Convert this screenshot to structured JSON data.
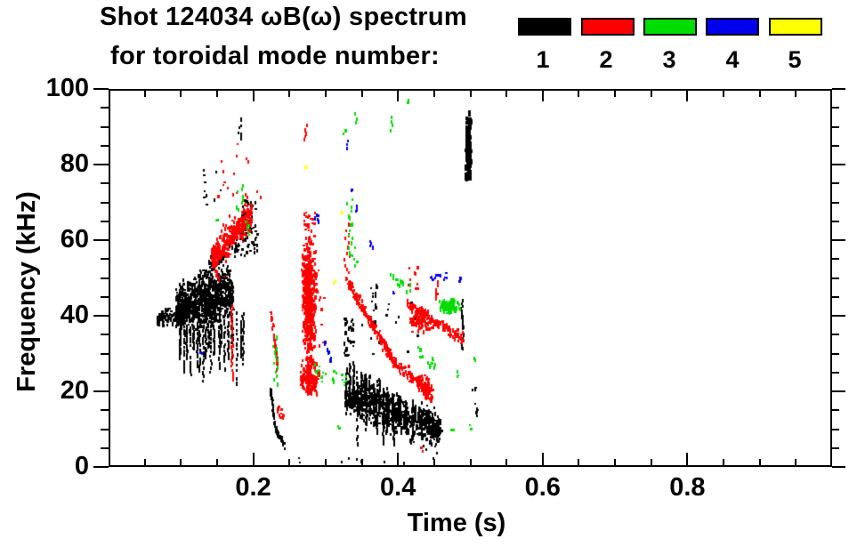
{
  "title_line1": "Shot 124034 ωB(ω) spectrum",
  "title_line2": "for toroidal mode number:",
  "chart_data": {
    "type": "scatter",
    "title": "Shot 124034 ωB(ω) spectrum for toroidal mode number",
    "xlabel": "Time (s)",
    "ylabel": "Frequency (kHz)",
    "xlim": [
      0,
      1.0
    ],
    "ylim": [
      0,
      100
    ],
    "x_major_ticks": [
      0.2,
      0.4,
      0.6,
      0.8
    ],
    "x_tick_labels": [
      "0.2",
      "0.4",
      "0.6",
      "0.8"
    ],
    "x_minor_step": 0.05,
    "y_major_ticks": [
      0,
      20,
      40,
      60,
      80,
      100
    ],
    "y_tick_labels": [
      "0",
      "20",
      "40",
      "60",
      "80",
      "100"
    ],
    "y_minor_step": 5,
    "grid": false,
    "legend_position": "top-right",
    "legend": [
      {
        "label": "1",
        "mode": 1,
        "color": "#000000"
      },
      {
        "label": "2",
        "mode": 2,
        "color": "#ff0000"
      },
      {
        "label": "3",
        "mode": 3,
        "color": "#00dd00"
      },
      {
        "label": "4",
        "mode": 4,
        "color": "#0000ee"
      },
      {
        "label": "5",
        "mode": 5,
        "color": "#ffff00"
      }
    ],
    "series": [
      {
        "name": "n=1",
        "mode": 1,
        "color": "#000000",
        "clusters": [
          {
            "k": "diag",
            "t": [
              0.067,
              0.1
            ],
            "f": [
              38.5,
              41.0
            ],
            "w": 2.2,
            "n": 90
          },
          {
            "k": "diag",
            "t": [
              0.093,
              0.172
            ],
            "f": [
              41.5,
              46.5
            ],
            "w": 6.0,
            "n": 950
          },
          {
            "k": "vspikes",
            "t": [
              0.095,
              0.188
            ],
            "top": [
              36,
              40
            ],
            "bot": [
              25,
              16
            ],
            "tracks": 22,
            "n": 330
          },
          {
            "k": "diag",
            "t": [
              0.125,
              0.2
            ],
            "f": [
              50,
              64
            ],
            "w": 3.0,
            "n": 90
          },
          {
            "k": "specks",
            "t": [
              0.18,
              0.206
            ],
            "f": [
              56,
              71
            ],
            "n": 60
          },
          {
            "k": "specks",
            "t": [
              0.13,
              0.156
            ],
            "f": [
              69,
              79
            ],
            "n": 10
          },
          {
            "k": "vstreak",
            "t": [
              0.179,
              0.186
            ],
            "f": [
              87,
              92.5
            ],
            "n": 7
          },
          {
            "k": "diag",
            "t": [
              0.2235,
              0.231
            ],
            "f": [
              21,
              10
            ],
            "w": 1.0,
            "n": 36
          },
          {
            "k": "diag",
            "t": [
              0.231,
              0.2435
            ],
            "f": [
              10,
              5.5
            ],
            "w": 0.9,
            "n": 26
          },
          {
            "k": "vspikes",
            "t": [
              0.327,
              0.45
            ],
            "top": [
              28,
              13
            ],
            "bot": [
              3,
              7
            ],
            "tracks": 26,
            "n": 560
          },
          {
            "k": "diag",
            "t": [
              0.327,
              0.458
            ],
            "f": [
              19,
              9.5
            ],
            "w": 4.5,
            "n": 620
          },
          {
            "k": "specks",
            "t": [
              0.45,
              0.463
            ],
            "f": [
              8.8,
              10.4
            ],
            "n": 14
          },
          {
            "k": "specks",
            "t": [
              0.325,
              0.34
            ],
            "f": [
              29,
              40
            ],
            "n": 40
          },
          {
            "k": "specks",
            "t": [
              0.36,
              0.372
            ],
            "f": [
              38,
              48
            ],
            "n": 14
          },
          {
            "k": "specks",
            "t": [
              0.35,
              0.43
            ],
            "f": [
              28,
              46
            ],
            "n": 16
          },
          {
            "k": "bar",
            "t": [
              0.4935,
              0.5005
            ],
            "f": [
              76,
              92.5
            ],
            "n": 140
          },
          {
            "k": "specks",
            "t": [
              0.496,
              0.499
            ],
            "f": [
              93,
              94.5
            ],
            "n": 2
          },
          {
            "k": "vstreak",
            "t": [
              0.4875,
              0.4905
            ],
            "f": [
              31,
              44
            ],
            "n": 20
          },
          {
            "k": "specks",
            "t": [
              0.503,
              0.51
            ],
            "f": [
              13,
              21.5
            ],
            "n": 9
          },
          {
            "k": "specks",
            "t": [
              0.23,
              0.49
            ],
            "f": [
              0.2,
              2.5
            ],
            "n": 11
          }
        ]
      },
      {
        "name": "n=2",
        "mode": 2,
        "color": "#ff0000",
        "clusters": [
          {
            "k": "diag",
            "t": [
              0.143,
              0.198
            ],
            "f": [
              55.5,
              67
            ],
            "w": 3.5,
            "n": 290
          },
          {
            "k": "diag",
            "t": [
              0.143,
              0.198
            ],
            "f": [
              55.5,
              67
            ],
            "w": 7.5,
            "n": 55
          },
          {
            "k": "specks",
            "t": [
              0.15,
              0.21
            ],
            "f": [
              70,
              86
            ],
            "n": 14
          },
          {
            "k": "vstreak",
            "t": [
              0.1695,
              0.1725
            ],
            "f": [
              23,
              43
            ],
            "n": 24
          },
          {
            "k": "diag",
            "t": [
              0.2235,
              0.2335
            ],
            "f": [
              42.5,
              26.5
            ],
            "w": 1.4,
            "n": 40
          },
          {
            "k": "specks",
            "t": [
              0.231,
              0.242
            ],
            "f": [
              12,
              16.5
            ],
            "n": 12
          },
          {
            "k": "blob",
            "t": [
              0.267,
              0.288
            ],
            "f": [
              25,
              62
            ],
            "n": 540
          },
          {
            "k": "blob",
            "t": [
              0.264,
              0.292
            ],
            "f": [
              18.5,
              28
            ],
            "n": 160
          },
          {
            "k": "specks",
            "t": [
              0.27,
              0.285
            ],
            "f": [
              62,
              67.5
            ],
            "n": 26
          },
          {
            "k": "vstreak",
            "t": [
              0.27,
              0.274
            ],
            "f": [
              86.5,
              90
            ],
            "n": 5
          },
          {
            "k": "specks",
            "t": [
              0.288,
              0.298
            ],
            "f": [
              30,
              55
            ],
            "n": 10
          },
          {
            "k": "vstreak",
            "t": [
              0.326,
              0.333
            ],
            "f": [
              50,
              64
            ],
            "n": 13
          },
          {
            "k": "diag",
            "t": [
              0.3285,
              0.396
            ],
            "f": [
              49.5,
              27.5
            ],
            "w": 1.7,
            "n": 175
          },
          {
            "k": "diag",
            "t": [
              0.396,
              0.448
            ],
            "f": [
              27.5,
              19
            ],
            "w": 1.7,
            "n": 95
          },
          {
            "k": "blob",
            "t": [
              0.428,
              0.448
            ],
            "f": [
              18,
              24.5
            ],
            "n": 65
          },
          {
            "k": "diag",
            "t": [
              0.412,
              0.49
            ],
            "f": [
              43,
              33.8
            ],
            "w": 1.4,
            "n": 115
          },
          {
            "k": "blob",
            "t": [
              0.414,
              0.446
            ],
            "f": [
              35,
              43
            ],
            "n": 95
          },
          {
            "k": "vstreak",
            "t": [
              0.452,
              0.456
            ],
            "f": [
              44.5,
              48.5
            ],
            "n": 7
          },
          {
            "k": "specks",
            "t": [
              0.412,
              0.428
            ],
            "f": [
              47,
              53
            ],
            "n": 10
          },
          {
            "k": "specks",
            "t": [
              0.431,
              0.435
            ],
            "f": [
              4.2,
              5.2
            ],
            "n": 2
          }
        ]
      },
      {
        "name": "n=3",
        "mode": 3,
        "color": "#00dd00",
        "clusters": [
          {
            "k": "vstreak",
            "t": [
              0.176,
              0.186
            ],
            "f": [
              68,
              74.5
            ],
            "n": 8
          },
          {
            "k": "specks",
            "t": [
              0.188,
              0.194
            ],
            "f": [
              61.5,
              66.5
            ],
            "n": 6
          },
          {
            "k": "specks",
            "t": [
              0.148,
              0.151
            ],
            "f": [
              64.8,
              66
            ],
            "n": 2
          },
          {
            "k": "vstreak",
            "t": [
              0.2275,
              0.2345
            ],
            "f": [
              22,
              34.5
            ],
            "n": 13
          },
          {
            "k": "specks",
            "t": [
              0.285,
              0.302
            ],
            "f": [
              21.5,
              27.5
            ],
            "n": 10
          },
          {
            "k": "specks",
            "t": [
              0.308,
              0.331
            ],
            "f": [
              21.5,
              25.5
            ],
            "n": 12
          },
          {
            "k": "specks",
            "t": [
              0.316,
              0.319
            ],
            "f": [
              9.5,
              11
            ],
            "n": 2
          },
          {
            "k": "vstreak",
            "t": [
              0.33,
              0.338
            ],
            "f": [
              56,
              71
            ],
            "n": 15
          },
          {
            "k": "specks",
            "t": [
              0.336,
              0.346
            ],
            "f": [
              53,
              59
            ],
            "n": 6
          },
          {
            "k": "specks",
            "t": [
              0.324,
              0.327
            ],
            "f": [
              88,
              89.4
            ],
            "n": 2
          },
          {
            "k": "vstreak",
            "t": [
              0.34,
              0.343
            ],
            "f": [
              91,
              93
            ],
            "n": 3
          },
          {
            "k": "vstreak",
            "t": [
              0.389,
              0.393
            ],
            "f": [
              89.4,
              92.5
            ],
            "n": 4
          },
          {
            "k": "specks",
            "t": [
              0.413,
              0.416
            ],
            "f": [
              96.4,
              98.2
            ],
            "n": 2
          },
          {
            "k": "diag",
            "t": [
              0.388,
              0.418
            ],
            "f": [
              51,
              46.5
            ],
            "w": 1.1,
            "n": 16
          },
          {
            "k": "diag",
            "t": [
              0.428,
              0.455
            ],
            "f": [
              31,
              25
            ],
            "w": 1.0,
            "n": 12
          },
          {
            "k": "specks",
            "t": [
              0.444,
              0.449
            ],
            "f": [
              27,
              29
            ],
            "n": 3
          },
          {
            "k": "specks",
            "t": [
              0.474,
              0.477
            ],
            "f": [
              9.6,
              11
            ],
            "n": 2
          },
          {
            "k": "specks",
            "t": [
              0.481,
              0.484
            ],
            "f": [
              23.8,
              25.2
            ],
            "n": 3
          },
          {
            "k": "specks",
            "t": [
              0.499,
              0.502
            ],
            "f": [
              9,
              11.3
            ],
            "n": 3
          },
          {
            "k": "specks",
            "t": [
              0.505,
              0.508
            ],
            "f": [
              27,
              29.5
            ],
            "n": 3
          },
          {
            "k": "blob",
            "t": [
              0.4565,
              0.4865
            ],
            "f": [
              40.5,
              44.5
            ],
            "n": 85
          }
        ]
      },
      {
        "name": "n=4",
        "mode": 4,
        "color": "#0000ee",
        "clusters": [
          {
            "k": "specks",
            "t": [
              0.126,
              0.129
            ],
            "f": [
              29.3,
              30.5
            ],
            "n": 2
          },
          {
            "k": "vstreak",
            "t": [
              0.284,
              0.2915
            ],
            "f": [
              65.2,
              66.8
            ],
            "n": 5
          },
          {
            "k": "vstreak",
            "t": [
              0.329,
              0.3315
            ],
            "f": [
              84.5,
              86.5
            ],
            "n": 3
          },
          {
            "k": "specks",
            "t": [
              0.335,
              0.338
            ],
            "f": [
              72.3,
              73.7
            ],
            "n": 2
          },
          {
            "k": "vstreak",
            "t": [
              0.341,
              0.344
            ],
            "f": [
              67.6,
              69.4
            ],
            "n": 3
          },
          {
            "k": "diag",
            "t": [
              0.2955,
              0.3095
            ],
            "f": [
              34.8,
              27.6
            ],
            "w": 0.7,
            "n": 9
          },
          {
            "k": "specks",
            "t": [
              0.391,
              0.394
            ],
            "f": [
              45.4,
              46.6
            ],
            "n": 2
          },
          {
            "k": "vstreak",
            "t": [
              0.359,
              0.3655
            ],
            "f": [
              58.2,
              59.6
            ],
            "n": 4
          },
          {
            "k": "specks",
            "t": [
              0.4445,
              0.4695
            ],
            "f": [
              49.2,
              51.4
            ],
            "n": 12
          },
          {
            "k": "specks",
            "t": [
              0.483,
              0.486
            ],
            "f": [
              48.8,
              50
            ],
            "n": 2
          }
        ]
      },
      {
        "name": "n=5",
        "mode": 5,
        "color": "#ffff00",
        "clusters": [
          {
            "k": "specks",
            "t": [
              0.2715,
              0.2735
            ],
            "f": [
              78.5,
              79.9
            ],
            "n": 2
          },
          {
            "k": "specks",
            "t": [
              0.321,
              0.324
            ],
            "f": [
              66.2,
              67.4
            ],
            "n": 2
          },
          {
            "k": "specks",
            "t": [
              0.311,
              0.314
            ],
            "f": [
              48.2,
              49.4
            ],
            "n": 2
          }
        ]
      }
    ]
  }
}
